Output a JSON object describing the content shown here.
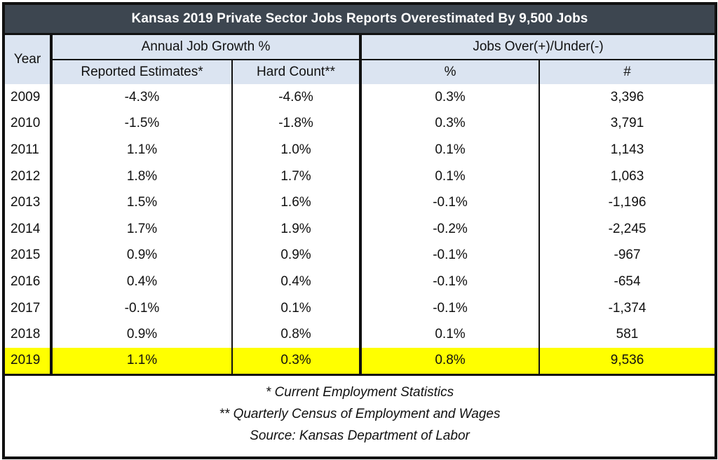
{
  "chart_data": {
    "type": "table",
    "title": "Kansas 2019 Private Sector Jobs Reports Overestimated By 9,500 Jobs",
    "year_header": "Year",
    "group_headers": [
      "Annual Job Growth %",
      "Jobs Over(+)/Under(-)"
    ],
    "column_headers": [
      "Reported Estimates*",
      "Hard Count**",
      "%",
      "#"
    ],
    "rows": [
      {
        "year": "2009",
        "reported": "-4.3%",
        "hard": "-4.6%",
        "pct": "0.3%",
        "num": "3,396"
      },
      {
        "year": "2010",
        "reported": "-1.5%",
        "hard": "-1.8%",
        "pct": "0.3%",
        "num": "3,791"
      },
      {
        "year": "2011",
        "reported": "1.1%",
        "hard": "1.0%",
        "pct": "0.1%",
        "num": "1,143"
      },
      {
        "year": "2012",
        "reported": "1.8%",
        "hard": "1.7%",
        "pct": "0.1%",
        "num": "1,063"
      },
      {
        "year": "2013",
        "reported": "1.5%",
        "hard": "1.6%",
        "pct": "-0.1%",
        "num": "-1,196"
      },
      {
        "year": "2014",
        "reported": "1.7%",
        "hard": "1.9%",
        "pct": "-0.2%",
        "num": "-2,245"
      },
      {
        "year": "2015",
        "reported": "0.9%",
        "hard": "0.9%",
        "pct": "-0.1%",
        "num": "-967"
      },
      {
        "year": "2016",
        "reported": "0.4%",
        "hard": "0.4%",
        "pct": "-0.1%",
        "num": "-654"
      },
      {
        "year": "2017",
        "reported": "-0.1%",
        "hard": "0.1%",
        "pct": "-0.1%",
        "num": "-1,374"
      },
      {
        "year": "2018",
        "reported": "0.9%",
        "hard": "0.8%",
        "pct": "0.1%",
        "num": "581"
      },
      {
        "year": "2019",
        "reported": "1.1%",
        "hard": "0.3%",
        "pct": "0.8%",
        "num": "9,536"
      }
    ],
    "notes": [
      "* Current Employment Statistics",
      "** Quarterly Census of Employment and Wages",
      "Source: Kansas Department of Labor"
    ],
    "colors": {
      "title_bg": "#3d4650",
      "header_bg": "#dbe4f1",
      "highlight": "#ffff00"
    }
  }
}
